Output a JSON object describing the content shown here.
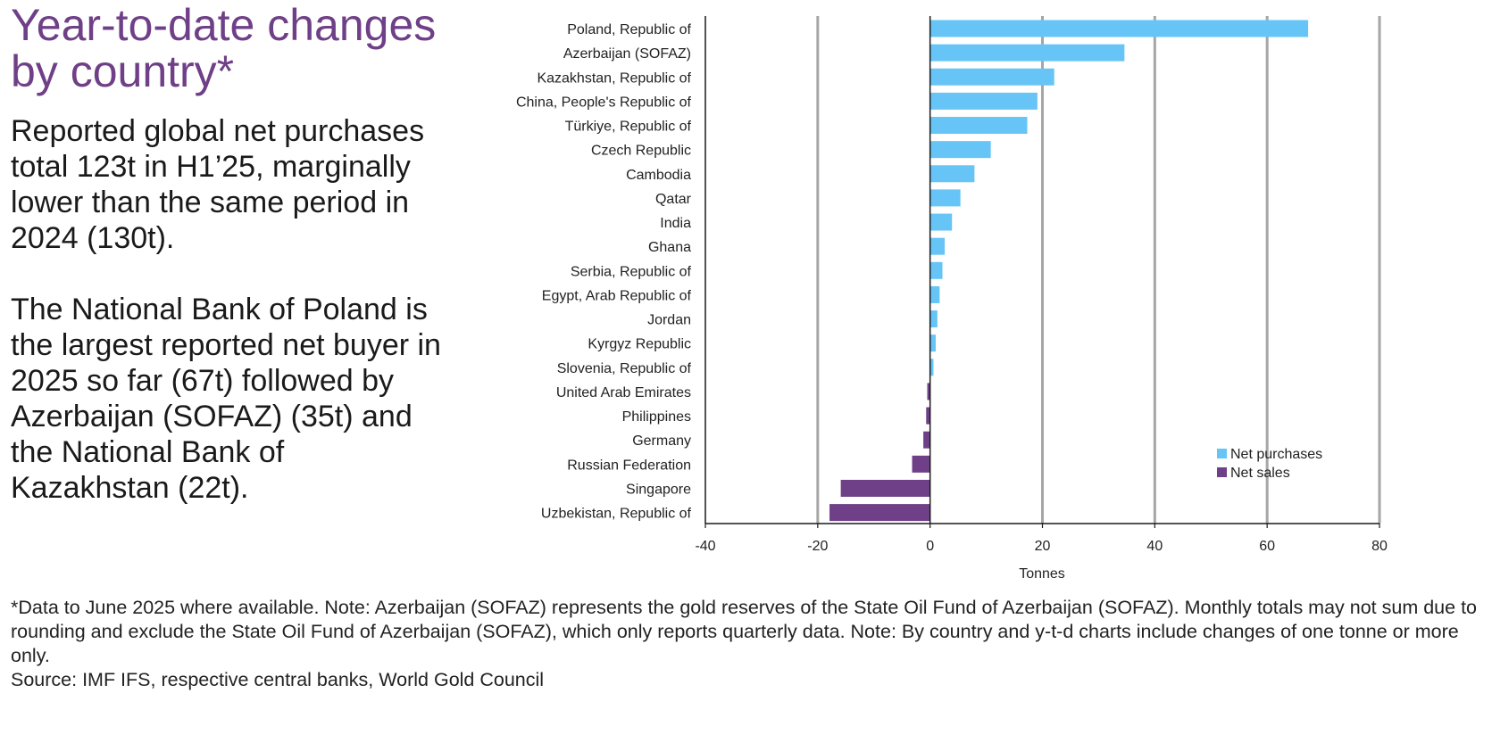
{
  "title": "Year-to-date changes by country*",
  "paragraphs": [
    "Reported global net purchases total 123t in H1’25, marginally lower than the same period in 2024 (130t).",
    "The National Bank of Poland is the largest reported net buyer in 2025 so far (67t) followed by Azerbaijan (SOFAZ) (35t) and the National Bank of Kazakhstan (22t)."
  ],
  "footnote": {
    "note": "*Data to June 2025 where available. Note: Azerbaijan (SOFAZ) represents the gold reserves of the State Oil Fund of Azerbaijan (SOFAZ). Monthly totals may not sum due to rounding and exclude the State Oil Fund of Azerbaijan (SOFAZ), which only reports quarterly data. Note: By country and y-t-d charts include changes of one tonne or more only.",
    "source": "Source: IMF IFS, respective central banks, World Gold Council"
  },
  "chart_data": {
    "type": "bar",
    "orientation": "horizontal",
    "categories": [
      "Poland, Republic of",
      "Azerbaijan (SOFAZ)",
      "Kazakhstan, Republic of",
      "China, People's Republic of",
      "Türkiye, Republic of",
      "Czech Republic",
      "Cambodia",
      "Qatar",
      "India",
      "Ghana",
      "Serbia, Republic of",
      "Egypt, Arab Republic of",
      "Jordan",
      "Kyrgyz Republic",
      "Slovenia, Republic of",
      "United Arab Emirates",
      "Philippines",
      "Germany",
      "Russian Federation",
      "Singapore",
      "Uzbekistan, Republic of"
    ],
    "values": [
      67.3,
      34.6,
      22.1,
      19.1,
      17.3,
      10.8,
      7.9,
      5.4,
      3.9,
      2.6,
      2.2,
      1.7,
      1.3,
      1.0,
      0.6,
      -0.5,
      -0.7,
      -1.2,
      -3.2,
      -15.9,
      -17.9
    ],
    "series": [
      {
        "name": "Net purchases",
        "color": "#66c5f6"
      },
      {
        "name": "Net sales",
        "color": "#6f3f87"
      }
    ],
    "xlabel": "Tonnes",
    "xlim": [
      -40,
      80
    ],
    "xticks": [
      -40,
      -20,
      0,
      20,
      40,
      60,
      80
    ],
    "grid": true,
    "legend_position": "bottom-right"
  }
}
